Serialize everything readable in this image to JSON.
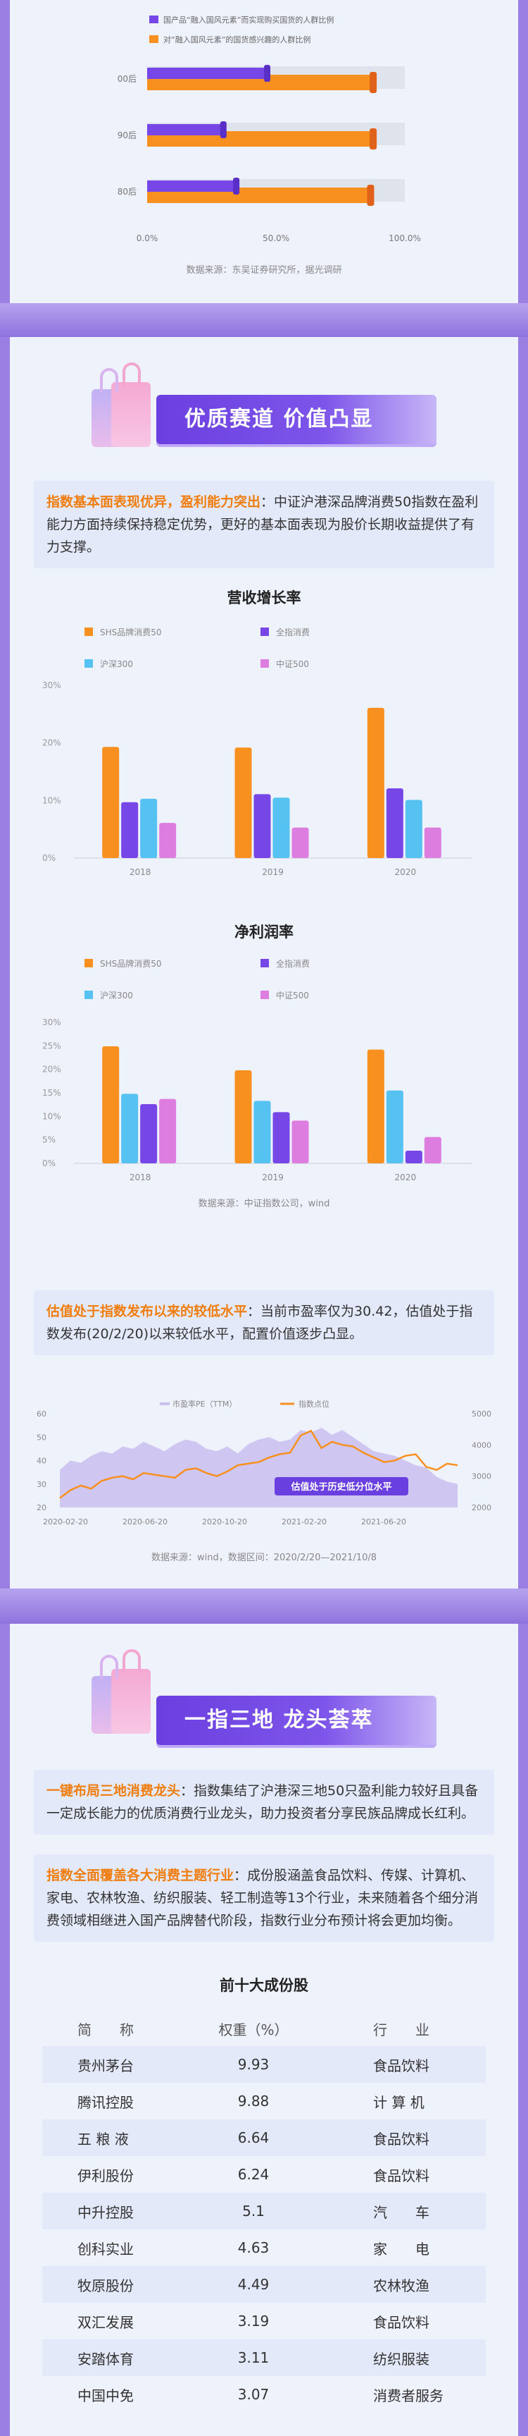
{
  "colors": {
    "orange": "#f7901e",
    "purple": "#7646e6",
    "cyan": "#55c2f2",
    "pink": "#dd7de0",
    "gray": "#dfe3ec"
  },
  "section1": {
    "chart_data": {
      "type": "bar",
      "legend": [
        "国产品“融入国风元素”而实现购买国货的人群比例",
        "对“融入国风元素”的国货感兴趣的人群比例"
      ],
      "categories": [
        "00后",
        "90后",
        "80后"
      ],
      "series": [
        {
          "name": "国产品“融入国风元素”而实现购买国货的人群比例",
          "values": [
            47,
            30,
            35
          ]
        },
        {
          "name": "对“融入国风元素”的国货感兴趣的人群比例",
          "values": [
            88,
            88,
            87
          ]
        }
      ],
      "xticks": [
        "0.0%",
        "50.0%",
        "100.0%"
      ],
      "xlim": [
        0,
        100
      ]
    },
    "source": "数据来源：东吴证券研究所，据光调研"
  },
  "section2": {
    "banner": "优质赛道  价值凸显",
    "para_highlight": "指数基本面表现优异，盈利能力突出",
    "para_text": "：中证沪港深品牌消费50指数在盈利能力方面持续保持稳定优势，更好的基本面表现为股价长期收益提供了有力支撑。",
    "chart1": {
      "chart_data": {
        "type": "bar",
        "title": "营收增长率",
        "categories": [
          "2018",
          "2019",
          "2020"
        ],
        "series": [
          {
            "name": "SHS品牌消费50",
            "values": [
              19.3,
              19.2,
              26.1
            ]
          },
          {
            "name": "全指消费",
            "values": [
              9.7,
              11.1,
              12.1
            ]
          },
          {
            "name": "沪深300",
            "values": [
              10.3,
              10.5,
              10.1
            ]
          },
          {
            "name": "中证500",
            "values": [
              6.1,
              5.3,
              5.3
            ]
          }
        ],
        "yticks": [
          "0%",
          "10%",
          "20%",
          "30%"
        ],
        "ylim": [
          0,
          30
        ]
      }
    },
    "chart2": {
      "chart_data": {
        "type": "bar",
        "title": "净利润率",
        "categories": [
          "2018",
          "2019",
          "2020"
        ],
        "series": [
          {
            "name": "SHS品牌消费50",
            "values": [
              24.9,
              19.8,
              24.2
            ]
          },
          {
            "name": "沪深300",
            "values": [
              14.8,
              13.3,
              15.5
            ]
          },
          {
            "name": "全指消费",
            "values": [
              12.6,
              10.9,
              2.7
            ]
          },
          {
            "name": "中证500",
            "values": [
              13.7,
              9.1,
              5.6
            ]
          }
        ],
        "legend": [
          "SHS品牌消费50",
          "全指消费",
          "沪深300",
          "中证500"
        ],
        "yticks": [
          "0%",
          "5%",
          "10%",
          "15%",
          "20%",
          "25%",
          "30%"
        ],
        "ylim": [
          0,
          30
        ]
      },
      "source": "数据来源：中证指数公司，wind"
    },
    "para2_highlight": "估值处于指数发布以来的较低水平",
    "para2_text": "：当前市盈率仅为30.42，估值处于指数发布(20/2/20)以来较低水平，配置价值逐步凸显。",
    "chart3": {
      "chart_data": {
        "type": "area",
        "legend": [
          "市盈率PE（TTM）",
          "指数点位"
        ],
        "xticks": [
          "2020-02-20",
          "2020-06-20",
          "2020-10-20",
          "2021-02-20",
          "2021-06-20"
        ],
        "yleft": [
          "20",
          "30",
          "40",
          "50",
          "60"
        ],
        "yright": [
          "2000",
          "3000",
          "4000",
          "5000"
        ],
        "pe": [
          36,
          40,
          39,
          42,
          44,
          43,
          46,
          45,
          48,
          46,
          44,
          47,
          49,
          48,
          45,
          44,
          46,
          43,
          47,
          49,
          50,
          48,
          49,
          53,
          52,
          54,
          51,
          53,
          50,
          47,
          44,
          43,
          42,
          40,
          38,
          37,
          33,
          31,
          30
        ],
        "index": [
          2300,
          2550,
          2700,
          2600,
          2850,
          2950,
          3000,
          2900,
          3100,
          3050,
          3000,
          2950,
          3200,
          3250,
          3100,
          3000,
          3150,
          3350,
          3400,
          3450,
          3600,
          3700,
          3750,
          4300,
          4450,
          3900,
          4100,
          4000,
          3950,
          3750,
          3600,
          3450,
          3500,
          3650,
          3700,
          3300,
          3200,
          3400,
          3350
        ],
        "annotation": "估值处于历史低分位水平"
      },
      "source": "数据来源：wind，数据区间：2020/2/20—2021/10/8"
    }
  },
  "section3": {
    "banner": "一指三地  龙头荟萃",
    "para_highlight": "一键布局三地消费龙头",
    "para_text": "：指数集结了沪港深三地50只盈利能力较好且具备一定成长能力的优质消费行业龙头，助力投资者分享民族品牌成长红利。",
    "para2_highlight": "指数全面覆盖各大消费主题行业",
    "para2_text": "：成份股涵盖食品饮料、传媒、计算机、家电、农林牧渔、纺织服装、轻工制造等13个行业，未来随着各个细分消费领域相继进入国产品牌替代阶段，指数行业分布预计将会更加均衡。",
    "table_title": "前十大成份股",
    "headers": [
      "简　　称",
      "权重（%）",
      "行　　业"
    ],
    "rows": [
      [
        "贵州茅台",
        "9.93",
        "食品饮料"
      ],
      [
        "腾讯控股",
        "9.88",
        "计 算 机"
      ],
      [
        "五 粮 液",
        "6.64",
        "食品饮料"
      ],
      [
        "伊利股份",
        "6.24",
        "食品饮料"
      ],
      [
        "中升控股",
        "5.1",
        "汽　　车"
      ],
      [
        "创科实业",
        "4.63",
        "家　　电"
      ],
      [
        "牧原股份",
        "4.49",
        "农林牧渔"
      ],
      [
        "双汇发展",
        "3.19",
        "食品饮料"
      ],
      [
        "安踏体育",
        "3.11",
        "纺织服装"
      ],
      [
        "中国中免",
        "3.07",
        "消费者服务"
      ]
    ]
  }
}
